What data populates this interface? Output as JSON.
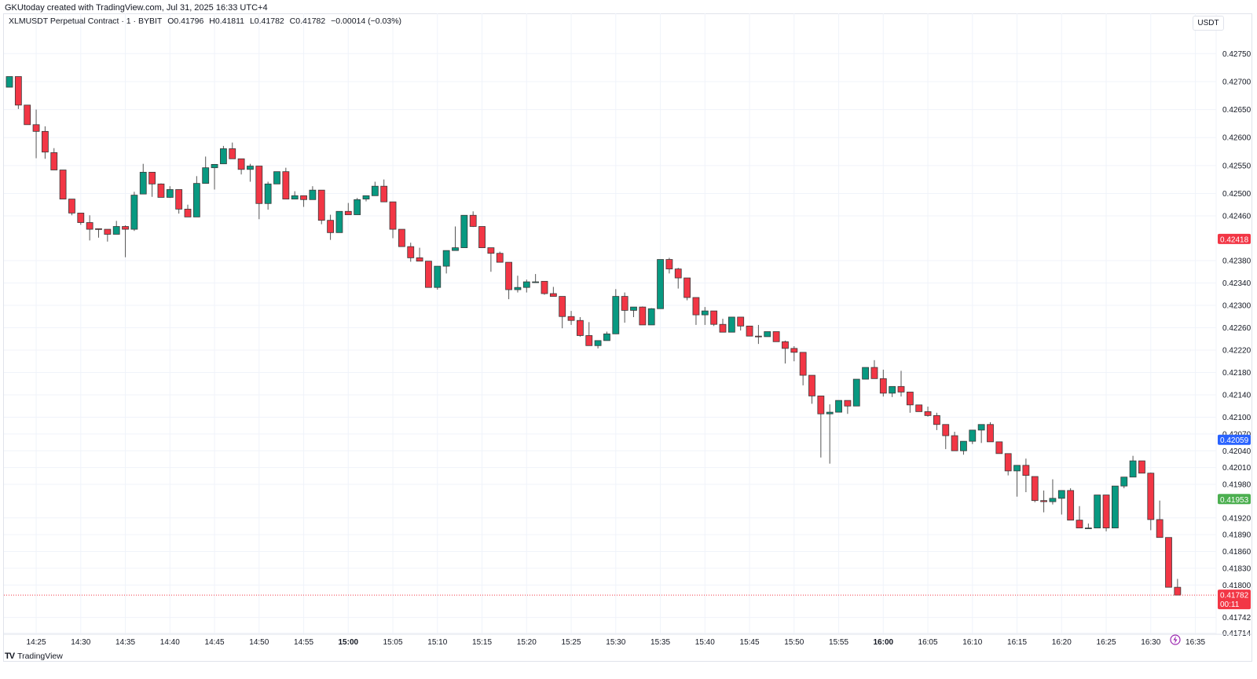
{
  "watermark": "GKUtoday created with TradingView.com, Jul 31, 2025 16:33 UTC+4",
  "legend": {
    "symbol": "XLMUSDT Perpetual Contract · 1 · BYBIT",
    "open": "O0.41796",
    "high": "H0.41811",
    "low": "L0.41782",
    "close": "C0.41782",
    "change": "−0.00014 (−0.03%)"
  },
  "currency_button": "USDT",
  "footer_logo": "TradingView",
  "colors": {
    "up": "#089981",
    "down": "#f23645",
    "outline": "#3a3a3a",
    "grid": "#f0f3fa",
    "badge_red": "#f23645",
    "badge_blue": "#2962ff",
    "badge_green": "#4caf50",
    "event_marker": "#9c27b0"
  },
  "chart_data": {
    "type": "candlestick",
    "interval": "1",
    "grid": true,
    "ylim": [
      0.41712,
      0.42822
    ],
    "y_ticks": [
      "0.42750",
      "0.42700",
      "0.42650",
      "0.42600",
      "0.42550",
      "0.42500",
      "0.42460",
      "0.42380",
      "0.42340",
      "0.42300",
      "0.42260",
      "0.42220",
      "0.42180",
      "0.42140",
      "0.42100",
      "0.42070",
      "0.42040",
      "0.42010",
      "0.41980",
      "0.41920",
      "0.41890",
      "0.41860",
      "0.41830",
      "0.41800",
      "0.41742",
      "0.41714"
    ],
    "x_ticks": [
      {
        "label": "14:25",
        "bold": false
      },
      {
        "label": "14:30",
        "bold": false
      },
      {
        "label": "14:35",
        "bold": false
      },
      {
        "label": "14:40",
        "bold": false
      },
      {
        "label": "14:45",
        "bold": false
      },
      {
        "label": "14:50",
        "bold": false
      },
      {
        "label": "14:55",
        "bold": false
      },
      {
        "label": "15:00",
        "bold": true
      },
      {
        "label": "15:05",
        "bold": false
      },
      {
        "label": "15:10",
        "bold": false
      },
      {
        "label": "15:15",
        "bold": false
      },
      {
        "label": "15:20",
        "bold": false
      },
      {
        "label": "15:25",
        "bold": false
      },
      {
        "label": "15:30",
        "bold": false
      },
      {
        "label": "15:35",
        "bold": false
      },
      {
        "label": "15:40",
        "bold": false
      },
      {
        "label": "15:45",
        "bold": false
      },
      {
        "label": "15:50",
        "bold": false
      },
      {
        "label": "15:55",
        "bold": false
      },
      {
        "label": "16:00",
        "bold": true
      },
      {
        "label": "16:05",
        "bold": false
      },
      {
        "label": "16:10",
        "bold": false
      },
      {
        "label": "16:15",
        "bold": false
      },
      {
        "label": "16:20",
        "bold": false
      },
      {
        "label": "16:25",
        "bold": false
      },
      {
        "label": "16:30",
        "bold": false
      },
      {
        "label": "16:35",
        "bold": false
      }
    ],
    "price_badges": [
      {
        "label": "0.42418",
        "value": 0.42418,
        "color": "#f23645"
      },
      {
        "label": "0.42059",
        "value": 0.42059,
        "color": "#2962ff"
      },
      {
        "label": "0.41953",
        "value": 0.41953,
        "color": "#4caf50"
      }
    ],
    "last_price": {
      "label": "0.41782",
      "value": 0.41782,
      "countdown": "00:11",
      "color": "#f23645"
    },
    "columns": [
      "time",
      "open",
      "high",
      "low",
      "close"
    ],
    "candles": [
      [
        "14:22",
        0.4269,
        0.42709,
        0.4269,
        0.42709
      ],
      [
        "14:23",
        0.42709,
        0.42709,
        0.42651,
        0.42658
      ],
      [
        "14:24",
        0.42658,
        0.42658,
        0.42623,
        0.42623
      ],
      [
        "14:25",
        0.42623,
        0.4265,
        0.42563,
        0.42611
      ],
      [
        "14:26",
        0.42611,
        0.4262,
        0.42562,
        0.42574
      ],
      [
        "14:27",
        0.42573,
        0.42581,
        0.42542,
        0.42542
      ],
      [
        "14:28",
        0.42542,
        0.42542,
        0.4249,
        0.4249
      ],
      [
        "14:29",
        0.4249,
        0.4249,
        0.42461,
        0.42465
      ],
      [
        "14:30",
        0.42465,
        0.42465,
        0.42444,
        0.42448
      ],
      [
        "14:31",
        0.42448,
        0.42461,
        0.42416,
        0.42436
      ],
      [
        "14:32",
        0.42437,
        0.42437,
        0.42421,
        0.42436
      ],
      [
        "14:33",
        0.42436,
        0.42436,
        0.42414,
        0.42427
      ],
      [
        "14:34",
        0.42427,
        0.42451,
        0.42427,
        0.42441
      ],
      [
        "14:35",
        0.42441,
        0.42443,
        0.42386,
        0.42436
      ],
      [
        "14:36",
        0.42436,
        0.42503,
        0.42433,
        0.42497
      ],
      [
        "14:37",
        0.42499,
        0.42553,
        0.42499,
        0.42538
      ],
      [
        "14:38",
        0.42538,
        0.42538,
        0.42494,
        0.42517
      ],
      [
        "14:39",
        0.42517,
        0.42518,
        0.42493,
        0.42493
      ],
      [
        "14:40",
        0.42493,
        0.42513,
        0.42492,
        0.42507
      ],
      [
        "14:41",
        0.42507,
        0.42507,
        0.42464,
        0.42472
      ],
      [
        "14:42",
        0.42472,
        0.4248,
        0.42458,
        0.42458
      ],
      [
        "14:43",
        0.42458,
        0.42531,
        0.42458,
        0.42518
      ],
      [
        "14:44",
        0.42518,
        0.42566,
        0.42518,
        0.42546
      ],
      [
        "14:45",
        0.42546,
        0.42552,
        0.42507,
        0.42552
      ],
      [
        "14:46",
        0.42553,
        0.42585,
        0.42553,
        0.4258
      ],
      [
        "14:47",
        0.4258,
        0.42591,
        0.42562,
        0.42562
      ],
      [
        "14:48",
        0.42562,
        0.42562,
        0.42534,
        0.42543
      ],
      [
        "14:49",
        0.42543,
        0.42553,
        0.42521,
        0.42549
      ],
      [
        "14:50",
        0.42549,
        0.42549,
        0.42454,
        0.42482
      ],
      [
        "14:51",
        0.42482,
        0.42521,
        0.42471,
        0.42517
      ],
      [
        "14:52",
        0.42517,
        0.42539,
        0.42517,
        0.42539
      ],
      [
        "14:53",
        0.42539,
        0.42546,
        0.4249,
        0.4249
      ],
      [
        "14:54",
        0.4249,
        0.42504,
        0.4249,
        0.42496
      ],
      [
        "14:55",
        0.42496,
        0.42496,
        0.42476,
        0.42489
      ],
      [
        "14:56",
        0.42489,
        0.42513,
        0.42489,
        0.42506
      ],
      [
        "14:57",
        0.42506,
        0.42506,
        0.42445,
        0.42452
      ],
      [
        "14:58",
        0.42452,
        0.42462,
        0.42417,
        0.4243
      ],
      [
        "14:59",
        0.4243,
        0.42468,
        0.4243,
        0.42468
      ],
      [
        "15:00",
        0.42468,
        0.42483,
        0.42462,
        0.42462
      ],
      [
        "15:01",
        0.42462,
        0.42492,
        0.42462,
        0.42489
      ],
      [
        "15:02",
        0.4249,
        0.42496,
        0.42486,
        0.42496
      ],
      [
        "15:03",
        0.42496,
        0.42521,
        0.42496,
        0.42513
      ],
      [
        "15:04",
        0.42513,
        0.42525,
        0.42485,
        0.42485
      ],
      [
        "15:05",
        0.42485,
        0.42485,
        0.4242,
        0.42436
      ],
      [
        "15:06",
        0.42436,
        0.42436,
        0.42405,
        0.42405
      ],
      [
        "15:07",
        0.42405,
        0.42412,
        0.42378,
        0.42385
      ],
      [
        "15:08",
        0.42385,
        0.42403,
        0.42379,
        0.42379
      ],
      [
        "15:09",
        0.42379,
        0.42379,
        0.42332,
        0.42332
      ],
      [
        "15:10",
        0.42332,
        0.4237,
        0.42328,
        0.4237
      ],
      [
        "15:11",
        0.4237,
        0.42398,
        0.42357,
        0.42398
      ],
      [
        "15:12",
        0.42398,
        0.42441,
        0.42398,
        0.42403
      ],
      [
        "15:13",
        0.42403,
        0.42461,
        0.42403,
        0.42461
      ],
      [
        "15:14",
        0.42461,
        0.42468,
        0.4244,
        0.42441
      ],
      [
        "15:15",
        0.42441,
        0.42441,
        0.42403,
        0.42403
      ],
      [
        "15:16",
        0.42403,
        0.42403,
        0.4236,
        0.42393
      ],
      [
        "15:17",
        0.42393,
        0.42396,
        0.42377,
        0.42377
      ],
      [
        "15:18",
        0.42377,
        0.42377,
        0.42311,
        0.42328
      ],
      [
        "15:19",
        0.42328,
        0.42353,
        0.42323,
        0.42332
      ],
      [
        "15:20",
        0.42332,
        0.42346,
        0.42323,
        0.42342
      ],
      [
        "15:21",
        0.42342,
        0.42356,
        0.4234,
        0.42342
      ],
      [
        "15:22",
        0.42343,
        0.42343,
        0.42319,
        0.42321
      ],
      [
        "15:23",
        0.42321,
        0.42333,
        0.42316,
        0.42316
      ],
      [
        "15:24",
        0.42316,
        0.42316,
        0.42259,
        0.4228
      ],
      [
        "15:25",
        0.4228,
        0.4229,
        0.42265,
        0.42273
      ],
      [
        "15:26",
        0.42273,
        0.42279,
        0.42244,
        0.42246
      ],
      [
        "15:27",
        0.42246,
        0.4227,
        0.42228,
        0.42228
      ],
      [
        "15:28",
        0.42228,
        0.42237,
        0.42223,
        0.42237
      ],
      [
        "15:29",
        0.42237,
        0.42253,
        0.42237,
        0.42249
      ],
      [
        "15:30",
        0.42249,
        0.42329,
        0.42249,
        0.42316
      ],
      [
        "15:31",
        0.42316,
        0.42323,
        0.42269,
        0.42291
      ],
      [
        "15:32",
        0.42291,
        0.42297,
        0.42279,
        0.42297
      ],
      [
        "15:33",
        0.42297,
        0.42298,
        0.42265,
        0.42265
      ],
      [
        "15:34",
        0.42265,
        0.42295,
        0.42265,
        0.42294
      ],
      [
        "15:35",
        0.42294,
        0.42382,
        0.42294,
        0.42382
      ],
      [
        "15:36",
        0.42382,
        0.42385,
        0.42357,
        0.42365
      ],
      [
        "15:37",
        0.42365,
        0.42367,
        0.4233,
        0.42349
      ],
      [
        "15:38",
        0.42349,
        0.42349,
        0.42309,
        0.42314
      ],
      [
        "15:39",
        0.42314,
        0.42314,
        0.42265,
        0.42283
      ],
      [
        "15:40",
        0.42283,
        0.42297,
        0.42265,
        0.4229
      ],
      [
        "15:41",
        0.4229,
        0.4229,
        0.42263,
        0.42266
      ],
      [
        "15:42",
        0.42266,
        0.42276,
        0.42252,
        0.42252
      ],
      [
        "15:43",
        0.42252,
        0.42279,
        0.42252,
        0.42279
      ],
      [
        "15:44",
        0.42279,
        0.42279,
        0.42255,
        0.42263
      ],
      [
        "15:45",
        0.42263,
        0.42263,
        0.42245,
        0.42245
      ],
      [
        "15:46",
        0.42245,
        0.42265,
        0.42231,
        0.42244
      ],
      [
        "15:47",
        0.42244,
        0.42253,
        0.42244,
        0.42253
      ],
      [
        "15:48",
        0.42253,
        0.42253,
        0.42235,
        0.42235
      ],
      [
        "15:49",
        0.42235,
        0.42237,
        0.42196,
        0.42223
      ],
      [
        "15:50",
        0.42223,
        0.42227,
        0.422,
        0.42216
      ],
      [
        "15:51",
        0.42216,
        0.42216,
        0.42157,
        0.42175
      ],
      [
        "15:52",
        0.42175,
        0.42175,
        0.42124,
        0.42138
      ],
      [
        "15:53",
        0.42138,
        0.42138,
        0.42028,
        0.42106
      ],
      [
        "15:54",
        0.42106,
        0.42123,
        0.42017,
        0.42109
      ],
      [
        "15:55",
        0.42109,
        0.4213,
        0.42109,
        0.4213
      ],
      [
        "15:56",
        0.4213,
        0.4213,
        0.42106,
        0.4212
      ],
      [
        "15:57",
        0.4212,
        0.42168,
        0.4212,
        0.42168
      ],
      [
        "15:58",
        0.42168,
        0.42189,
        0.42168,
        0.42189
      ],
      [
        "15:59",
        0.42189,
        0.42202,
        0.42169,
        0.42169
      ],
      [
        "16:00",
        0.42169,
        0.42185,
        0.42137,
        0.42143
      ],
      [
        "16:01",
        0.42143,
        0.42155,
        0.42136,
        0.42155
      ],
      [
        "16:02",
        0.42155,
        0.42183,
        0.42137,
        0.42145
      ],
      [
        "16:03",
        0.42145,
        0.42145,
        0.42108,
        0.42122
      ],
      [
        "16:04",
        0.42122,
        0.42122,
        0.4211,
        0.4211
      ],
      [
        "16:05",
        0.4211,
        0.42119,
        0.42101,
        0.42103
      ],
      [
        "16:06",
        0.42103,
        0.42108,
        0.42077,
        0.42087
      ],
      [
        "16:07",
        0.42087,
        0.42087,
        0.42043,
        0.42067
      ],
      [
        "16:08",
        0.42067,
        0.42074,
        0.4204,
        0.4204
      ],
      [
        "16:09",
        0.4204,
        0.42057,
        0.42033,
        0.42057
      ],
      [
        "16:10",
        0.42057,
        0.42077,
        0.42052,
        0.42077
      ],
      [
        "16:11",
        0.42077,
        0.42087,
        0.42054,
        0.42087
      ],
      [
        "16:12",
        0.42087,
        0.42091,
        0.42056,
        0.42056
      ],
      [
        "16:13",
        0.42056,
        0.42056,
        0.42035,
        0.42035
      ],
      [
        "16:14",
        0.42035,
        0.42035,
        0.41996,
        0.42004
      ],
      [
        "16:15",
        0.42004,
        0.42014,
        0.41958,
        0.42014
      ],
      [
        "16:16",
        0.42014,
        0.42026,
        0.41966,
        0.41996
      ],
      [
        "16:17",
        0.41994,
        0.41994,
        0.41948,
        0.41951
      ],
      [
        "16:18",
        0.41951,
        0.41969,
        0.4193,
        0.41949
      ],
      [
        "16:19",
        0.41949,
        0.41989,
        0.41944,
        0.41955
      ],
      [
        "16:20",
        0.41955,
        0.41969,
        0.41926,
        0.41969
      ],
      [
        "16:21",
        0.41969,
        0.41973,
        0.41916,
        0.41916
      ],
      [
        "16:22",
        0.41916,
        0.41941,
        0.41902,
        0.41902
      ],
      [
        "16:23",
        0.41902,
        0.4191,
        0.41902,
        0.41902
      ],
      [
        "16:24",
        0.41902,
        0.41961,
        0.41902,
        0.41961
      ],
      [
        "16:25",
        0.41961,
        0.41961,
        0.41896,
        0.41902
      ],
      [
        "16:26",
        0.41902,
        0.41977,
        0.41902,
        0.41977
      ],
      [
        "16:27",
        0.41977,
        0.41993,
        0.41973,
        0.41993
      ],
      [
        "16:28",
        0.41993,
        0.42031,
        0.41993,
        0.42022
      ],
      [
        "16:29",
        0.42022,
        0.42022,
        0.42,
        0.42
      ],
      [
        "16:30",
        0.42,
        0.42001,
        0.41898,
        0.41917
      ],
      [
        "16:31",
        0.41917,
        0.41951,
        0.41885,
        0.41885
      ],
      [
        "16:32",
        0.41885,
        0.41885,
        0.41796,
        0.41796
      ],
      [
        "16:33",
        0.41796,
        0.41811,
        0.41782,
        0.41782
      ]
    ]
  }
}
